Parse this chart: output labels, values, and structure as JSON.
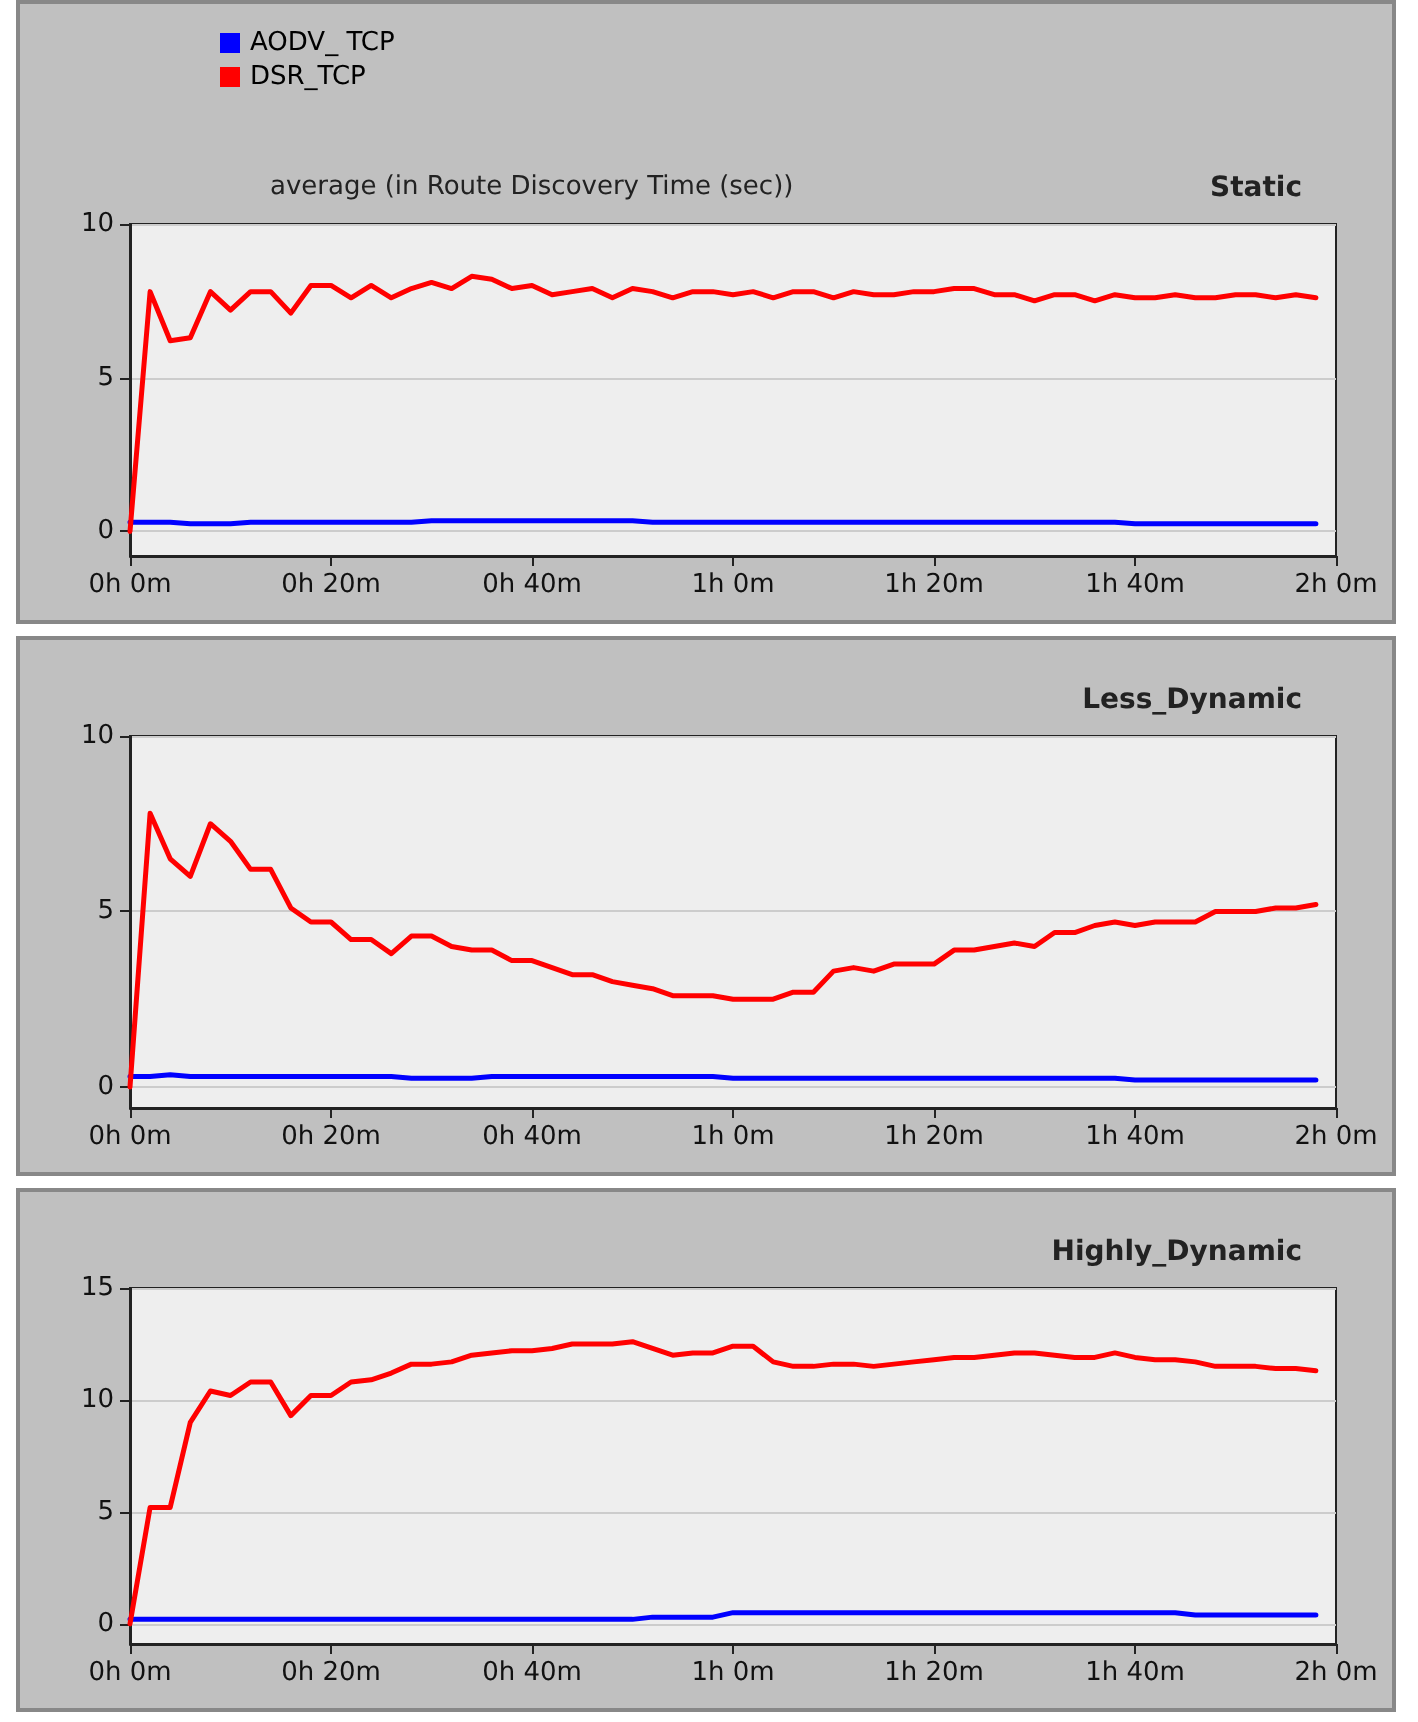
{
  "chart_data": [
    {
      "type": "line",
      "title": "Static",
      "subtitle": "average (in Route Discovery Time (sec))",
      "legend": "top left",
      "grid": "y",
      "marker": "none",
      "line_style": "solid",
      "categories": [
        "0h 0m",
        null,
        null,
        null,
        null,
        null,
        null,
        null,
        null,
        null,
        "0h 20m",
        null,
        null,
        null,
        null,
        null,
        null,
        null,
        null,
        null,
        "0h 40m",
        null,
        null,
        null,
        null,
        null,
        null,
        null,
        null,
        null,
        "1h 0m",
        null,
        null,
        null,
        null,
        null,
        null,
        null,
        null,
        null,
        "1h 20m",
        null,
        null,
        null,
        null,
        null,
        null,
        null,
        null,
        null,
        "1h 40m",
        null,
        null,
        null,
        null,
        null,
        null,
        null,
        null,
        null,
        "2h 0m"
      ],
      "ylim": [
        -0.8,
        10
      ],
      "yticks": [
        0,
        5,
        10
      ],
      "series": [
        {
          "name": "AODV_ TCP",
          "color": "#0000ff",
          "values": [
            0.3,
            0.3,
            0.3,
            0.25,
            0.25,
            0.25,
            0.3,
            0.3,
            0.3,
            0.3,
            0.3,
            0.3,
            0.3,
            0.3,
            0.3,
            0.35,
            0.35,
            0.35,
            0.35,
            0.35,
            0.35,
            0.35,
            0.35,
            0.35,
            0.35,
            0.35,
            0.3,
            0.3,
            0.3,
            0.3,
            0.3,
            0.3,
            0.3,
            0.3,
            0.3,
            0.3,
            0.3,
            0.3,
            0.3,
            0.3,
            0.3,
            0.3,
            0.3,
            0.3,
            0.3,
            0.3,
            0.3,
            0.3,
            0.3,
            0.3,
            0.25,
            0.25,
            0.25,
            0.25,
            0.25,
            0.25,
            0.25,
            0.25,
            0.25,
            0.25,
            null
          ]
        },
        {
          "name": "DSR_TCP",
          "color": "#ff0000",
          "values": [
            0,
            7.8,
            6.2,
            6.3,
            7.8,
            7.2,
            7.8,
            7.8,
            7.1,
            8.0,
            8.0,
            7.6,
            8.0,
            7.6,
            7.9,
            8.1,
            7.9,
            8.3,
            8.2,
            7.9,
            8.0,
            7.7,
            7.8,
            7.9,
            7.6,
            7.9,
            7.8,
            7.6,
            7.8,
            7.8,
            7.7,
            7.8,
            7.6,
            7.8,
            7.8,
            7.6,
            7.8,
            7.7,
            7.7,
            7.8,
            7.8,
            7.9,
            7.9,
            7.7,
            7.7,
            7.5,
            7.7,
            7.7,
            7.5,
            7.7,
            7.6,
            7.6,
            7.7,
            7.6,
            7.6,
            7.7,
            7.7,
            7.6,
            7.7,
            7.6,
            null
          ]
        }
      ]
    },
    {
      "type": "line",
      "title": "Less_Dynamic",
      "grid": "y",
      "marker": "none",
      "line_style": "solid",
      "categories": [
        "0h 0m",
        null,
        null,
        null,
        null,
        null,
        null,
        null,
        null,
        null,
        "0h 20m",
        null,
        null,
        null,
        null,
        null,
        null,
        null,
        null,
        null,
        "0h 40m",
        null,
        null,
        null,
        null,
        null,
        null,
        null,
        null,
        null,
        "1h 0m",
        null,
        null,
        null,
        null,
        null,
        null,
        null,
        null,
        null,
        "1h 20m",
        null,
        null,
        null,
        null,
        null,
        null,
        null,
        null,
        null,
        "1h 40m",
        null,
        null,
        null,
        null,
        null,
        null,
        null,
        null,
        null,
        "2h 0m"
      ],
      "ylim": [
        -0.6,
        10
      ],
      "yticks": [
        0,
        5,
        10
      ],
      "series": [
        {
          "color": "#0000ff",
          "values": [
            0.3,
            0.3,
            0.35,
            0.3,
            0.3,
            0.3,
            0.3,
            0.3,
            0.3,
            0.3,
            0.3,
            0.3,
            0.3,
            0.3,
            0.25,
            0.25,
            0.25,
            0.25,
            0.3,
            0.3,
            0.3,
            0.3,
            0.3,
            0.3,
            0.3,
            0.3,
            0.3,
            0.3,
            0.3,
            0.3,
            0.25,
            0.25,
            0.25,
            0.25,
            0.25,
            0.25,
            0.25,
            0.25,
            0.25,
            0.25,
            0.25,
            0.25,
            0.25,
            0.25,
            0.25,
            0.25,
            0.25,
            0.25,
            0.25,
            0.25,
            0.2,
            0.2,
            0.2,
            0.2,
            0.2,
            0.2,
            0.2,
            0.2,
            0.2,
            0.2,
            null
          ]
        },
        {
          "color": "#ff0000",
          "values": [
            0,
            7.8,
            6.5,
            6.0,
            7.5,
            7.0,
            6.2,
            6.2,
            5.1,
            4.7,
            4.7,
            4.2,
            4.2,
            3.8,
            4.3,
            4.3,
            4.0,
            3.9,
            3.9,
            3.6,
            3.6,
            3.4,
            3.2,
            3.2,
            3.0,
            2.9,
            2.8,
            2.6,
            2.6,
            2.6,
            2.5,
            2.5,
            2.5,
            2.7,
            2.7,
            3.3,
            3.4,
            3.3,
            3.5,
            3.5,
            3.5,
            3.9,
            3.9,
            4.0,
            4.1,
            4.0,
            4.4,
            4.4,
            4.6,
            4.7,
            4.6,
            4.7,
            4.7,
            4.7,
            5.0,
            5.0,
            5.0,
            5.1,
            5.1,
            5.2,
            null
          ]
        }
      ]
    },
    {
      "type": "line",
      "title": "Highly_Dynamic",
      "grid": "y",
      "marker": "none",
      "line_style": "solid",
      "categories": [
        "0h 0m",
        null,
        null,
        null,
        null,
        null,
        null,
        null,
        null,
        null,
        "0h 20m",
        null,
        null,
        null,
        null,
        null,
        null,
        null,
        null,
        null,
        "0h 40m",
        null,
        null,
        null,
        null,
        null,
        null,
        null,
        null,
        null,
        "1h 0m",
        null,
        null,
        null,
        null,
        null,
        null,
        null,
        null,
        null,
        "1h 20m",
        null,
        null,
        null,
        null,
        null,
        null,
        null,
        null,
        null,
        "1h 40m",
        null,
        null,
        null,
        null,
        null,
        null,
        null,
        null,
        null,
        "2h 0m"
      ],
      "ylim": [
        -0.9,
        15
      ],
      "yticks": [
        0,
        5,
        10,
        15
      ],
      "series": [
        {
          "color": "#0000ff",
          "values": [
            0.2,
            0.2,
            0.2,
            0.2,
            0.2,
            0.2,
            0.2,
            0.2,
            0.2,
            0.2,
            0.2,
            0.2,
            0.2,
            0.2,
            0.2,
            0.2,
            0.2,
            0.2,
            0.2,
            0.2,
            0.2,
            0.2,
            0.2,
            0.2,
            0.2,
            0.2,
            0.3,
            0.3,
            0.3,
            0.3,
            0.5,
            0.5,
            0.5,
            0.5,
            0.5,
            0.5,
            0.5,
            0.5,
            0.5,
            0.5,
            0.5,
            0.5,
            0.5,
            0.5,
            0.5,
            0.5,
            0.5,
            0.5,
            0.5,
            0.5,
            0.5,
            0.5,
            0.5,
            0.4,
            0.4,
            0.4,
            0.4,
            0.4,
            0.4,
            0.4,
            null
          ]
        },
        {
          "color": "#ff0000",
          "values": [
            0,
            5.2,
            5.2,
            9.0,
            10.4,
            10.2,
            10.8,
            10.8,
            9.3,
            10.2,
            10.2,
            10.8,
            10.9,
            11.2,
            11.6,
            11.6,
            11.7,
            12.0,
            12.1,
            12.2,
            12.2,
            12.3,
            12.5,
            12.5,
            12.5,
            12.6,
            12.3,
            12.0,
            12.1,
            12.1,
            12.4,
            12.4,
            11.7,
            11.5,
            11.5,
            11.6,
            11.6,
            11.5,
            11.6,
            11.7,
            11.8,
            11.9,
            11.9,
            12.0,
            12.1,
            12.1,
            12.0,
            11.9,
            11.9,
            12.1,
            11.9,
            11.8,
            11.8,
            11.7,
            11.5,
            11.5,
            11.5,
            11.4,
            11.4,
            11.3,
            null
          ]
        }
      ]
    }
  ]
}
